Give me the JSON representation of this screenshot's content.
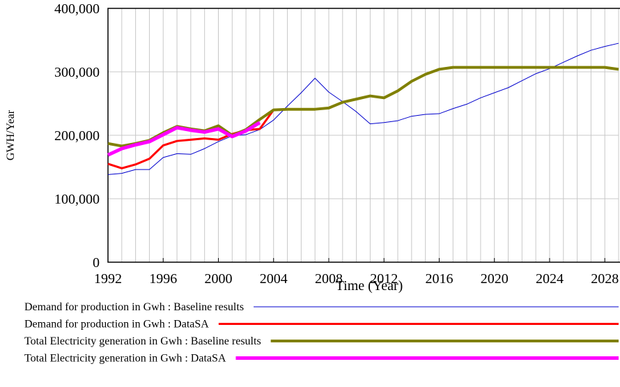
{
  "chart_data": {
    "type": "line",
    "xlabel": "Time (Year)",
    "ylabel": "GWH/Year",
    "x": [
      1992,
      1993,
      1994,
      1995,
      1996,
      1997,
      1998,
      1999,
      2000,
      2001,
      2002,
      2003,
      2004,
      2005,
      2006,
      2007,
      2008,
      2009,
      2010,
      2011,
      2012,
      2013,
      2014,
      2015,
      2016,
      2017,
      2018,
      2019,
      2020,
      2021,
      2022,
      2023,
      2024,
      2025,
      2026,
      2027,
      2028,
      2029
    ],
    "xlim": [
      1992,
      2029
    ],
    "xticks": [
      1992,
      1996,
      2000,
      2004,
      2008,
      2012,
      2016,
      2020,
      2024,
      2028
    ],
    "ylim": [
      0,
      400000
    ],
    "yticks": [
      {
        "value": 0,
        "label": "0"
      },
      {
        "value": 100000,
        "label": "100,000"
      },
      {
        "value": 200000,
        "label": "200,000"
      },
      {
        "value": 300000,
        "label": "300,000"
      },
      {
        "value": 400000,
        "label": "400,000"
      }
    ],
    "grid": true,
    "series": [
      {
        "name": "Demand for production in Gwh : Baseline results",
        "color": "#0000cc",
        "width": 1,
        "values": [
          138000,
          140000,
          146000,
          146000,
          165000,
          171000,
          170000,
          179000,
          190000,
          199000,
          201000,
          209000,
          224000,
          246000,
          267000,
          290000,
          268000,
          253000,
          237000,
          218000,
          220000,
          223000,
          230000,
          233000,
          234000,
          242000,
          249000,
          259000,
          267000,
          275000,
          286000,
          297000,
          305000,
          315000,
          325000,
          334000,
          340000,
          345000
        ]
      },
      {
        "name": "Demand for production in Gwh : DataSA",
        "color": "#ff0000",
        "width": 3,
        "values": [
          155000,
          148000,
          154000,
          163000,
          184000,
          191000,
          193000,
          195000,
          193000,
          202000,
          208000,
          210000,
          240000,
          null,
          null,
          null,
          null,
          null,
          null,
          null,
          null,
          null,
          null,
          null,
          null,
          null,
          null,
          null,
          null,
          null,
          null,
          null,
          null,
          null,
          null,
          null,
          null,
          null
        ]
      },
      {
        "name": "Total Electricity generation in Gwh : Baseline results",
        "color": "#808000",
        "width": 4,
        "values": [
          187000,
          183000,
          187000,
          192000,
          204000,
          214000,
          210000,
          207000,
          215000,
          200000,
          209000,
          225000,
          240000,
          241000,
          241000,
          241000,
          243000,
          252000,
          257000,
          262000,
          259000,
          270000,
          285000,
          296000,
          304000,
          307000,
          307000,
          307000,
          307000,
          307000,
          307000,
          307000,
          307000,
          307000,
          307000,
          307000,
          307000,
          304000
        ]
      },
      {
        "name": "Total Electricity generation in Gwh : DataSA",
        "color": "#ff00ff",
        "width": 5,
        "values": [
          169000,
          179000,
          185000,
          190000,
          201000,
          212000,
          208000,
          205000,
          210000,
          198000,
          207000,
          220000,
          null,
          null,
          null,
          null,
          null,
          null,
          null,
          null,
          null,
          null,
          null,
          null,
          null,
          null,
          null,
          null,
          null,
          null,
          null,
          null,
          null,
          null,
          null,
          null,
          null,
          null
        ]
      }
    ]
  }
}
